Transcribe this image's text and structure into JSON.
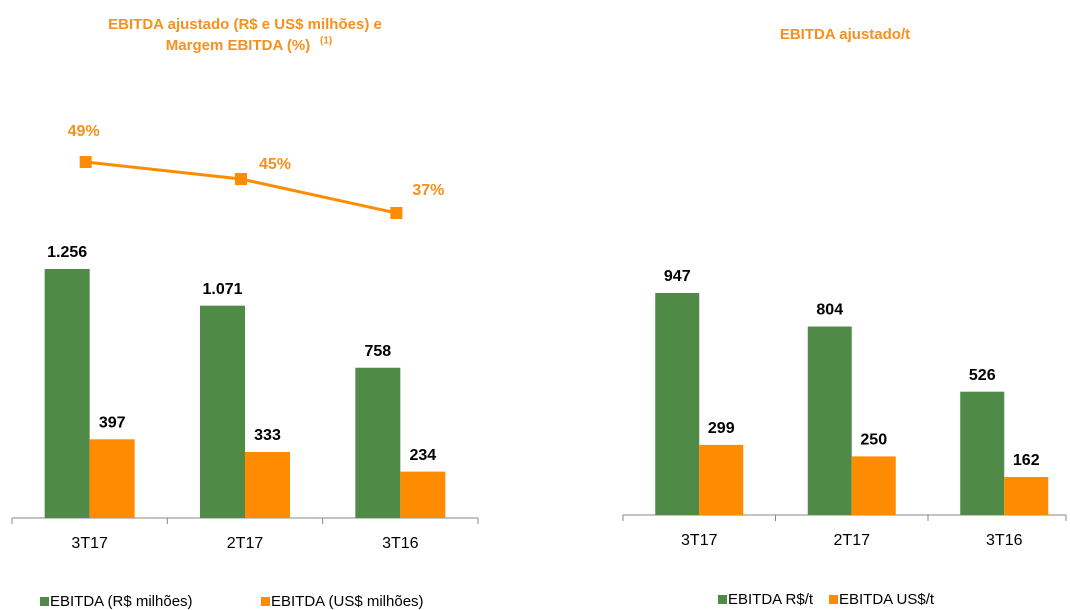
{
  "chart_data": [
    {
      "type": "bar",
      "title": "EBITDA ajustado (R$ e US$ milhões) e",
      "title_line2": "Margem EBITDA (%)",
      "title_note": "(1)",
      "categories": [
        "3T17",
        "2T17",
        "3T16"
      ],
      "series": [
        {
          "name": "EBITDA (R$ milhões)",
          "color": "#4f8b47",
          "type": "bar",
          "values": [
            1256,
            1071,
            758
          ],
          "value_labels": [
            "1.256",
            "1.071",
            "758"
          ]
        },
        {
          "name": "EBITDA (US$ milhões)",
          "color": "#ff8c00",
          "type": "bar",
          "values": [
            397,
            333,
            234
          ]
        },
        {
          "color": "#ff8c00",
          "type": "line",
          "values": [
            49,
            45,
            37
          ],
          "value_labels": [
            "49%",
            "45%",
            "37%"
          ]
        }
      ]
    },
    {
      "type": "bar",
      "title": "EBITDA ajustado/t",
      "categories": [
        "3T17",
        "2T17",
        "3T16"
      ],
      "series": [
        {
          "name": "EBITDA R$/t",
          "color": "#4f8b47",
          "type": "bar",
          "values": [
            947,
            804,
            526
          ]
        },
        {
          "name": "EBITDA US$/t",
          "color": "#ff8c00",
          "type": "bar",
          "values": [
            299,
            250,
            162
          ]
        }
      ]
    }
  ]
}
